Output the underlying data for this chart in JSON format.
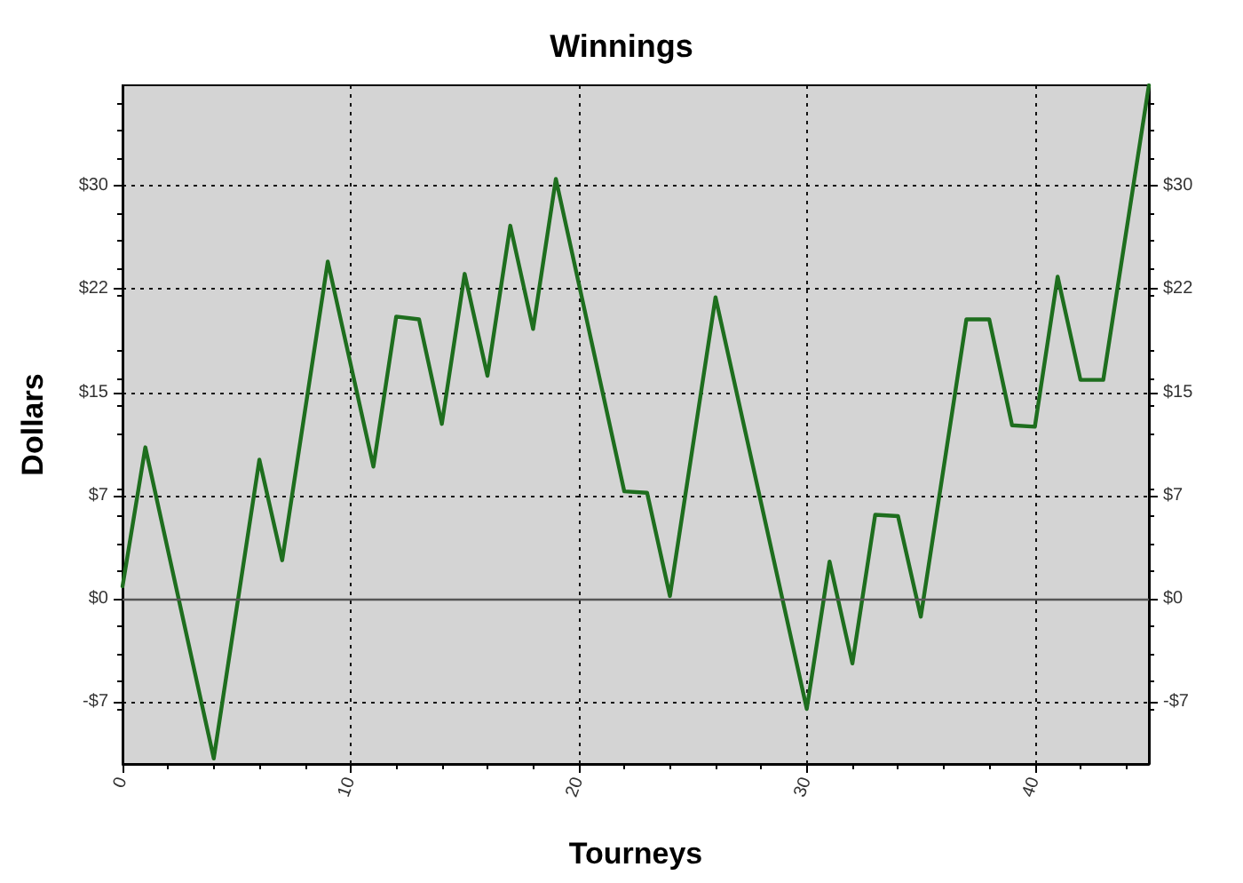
{
  "chart_data": {
    "type": "line",
    "title": "Winnings",
    "xlabel": "Tourneys",
    "ylabel": "Dollars",
    "x": [
      0,
      1,
      4,
      6,
      7,
      9,
      11,
      12,
      13,
      14,
      15,
      16,
      17,
      18,
      19,
      22,
      23,
      24,
      26,
      30,
      31,
      32,
      33,
      34,
      35,
      37,
      38,
      39,
      40,
      41,
      42,
      43,
      45
    ],
    "series": [
      {
        "color": "#1e6e1e",
        "values": [
          0.9,
          11.0,
          -11.6,
          10.1,
          2.8,
          24.5,
          9.6,
          20.5,
          20.3,
          12.7,
          23.6,
          16.2,
          27.1,
          19.6,
          30.5,
          7.8,
          7.7,
          0.2,
          21.9,
          -8.0,
          2.7,
          -4.7,
          6.1,
          6.0,
          -1.3,
          20.3,
          20.3,
          12.6,
          12.5,
          23.4,
          15.9,
          15.9,
          37.3
        ]
      }
    ],
    "xlim": [
      0,
      45
    ],
    "xticks": [
      0,
      10,
      20,
      30,
      40
    ],
    "ylim": [
      -12,
      37.3
    ],
    "yticks": [
      {
        "value": -7.5,
        "label": "-$7"
      },
      {
        "value": 0,
        "label": "$0"
      },
      {
        "value": 7.5,
        "label": "$7"
      },
      {
        "value": 15,
        "label": "$15"
      },
      {
        "value": 22.5,
        "label": "$22"
      },
      {
        "value": 30,
        "label": "$30"
      }
    ],
    "y2lim": [
      -12,
      37.3
    ],
    "y2ticks": [
      {
        "value": -7.5,
        "label": "-$7"
      },
      {
        "value": 0,
        "label": "$0"
      },
      {
        "value": 7.5,
        "label": "$7"
      },
      {
        "value": 15,
        "label": "$15"
      },
      {
        "value": 22.5,
        "label": "$22"
      },
      {
        "value": 30,
        "label": "$30"
      }
    ],
    "ref_lines": [
      {
        "axis": "y",
        "value": 0,
        "color": "#555555",
        "line_style": "solid"
      }
    ],
    "grid": true,
    "marker": "none",
    "line_style": "solid"
  }
}
